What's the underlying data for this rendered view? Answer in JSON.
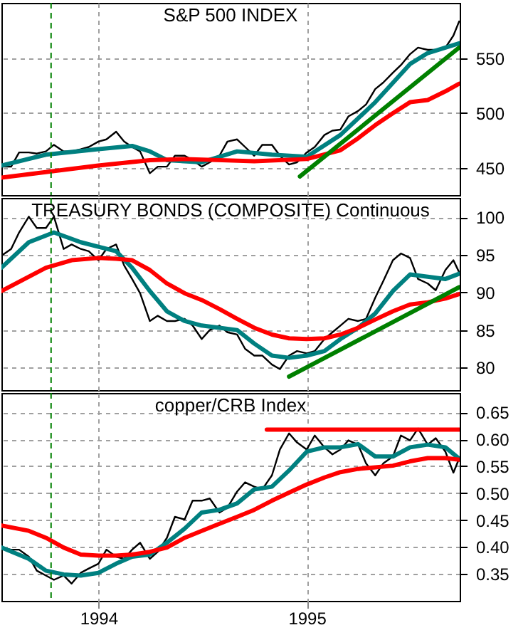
{
  "chart_data": [
    {
      "type": "line",
      "title": "S&P 500 INDEX",
      "xlim": [
        "1993-07-15",
        "1995-09-26"
      ],
      "xticks": [
        "1994",
        "1995"
      ],
      "ylim": [
        425,
        601
      ],
      "yticks": [
        450,
        500,
        550
      ],
      "grid": true,
      "tick_labels": "y",
      "x": [
        "1993-07-15",
        "1993-08-01",
        "1993-08-15",
        "1993-09-01",
        "1993-09-15",
        "1993-10-01",
        "1993-10-15",
        "1993-11-01",
        "1993-11-15",
        "1993-12-01",
        "1993-12-15",
        "1994-01-01",
        "1994-01-15",
        "1994-02-01",
        "1994-02-15",
        "1994-03-01",
        "1994-03-15",
        "1994-04-01",
        "1994-04-15",
        "1994-05-01",
        "1994-05-15",
        "1994-06-01",
        "1994-06-15",
        "1994-07-01",
        "1994-07-15",
        "1994-08-01",
        "1994-08-15",
        "1994-09-01",
        "1994-09-15",
        "1994-10-01",
        "1994-10-15",
        "1994-11-01",
        "1994-11-15",
        "1994-12-01",
        "1994-12-15",
        "1995-01-01",
        "1995-01-15",
        "1995-02-01",
        "1995-02-15",
        "1995-03-01",
        "1995-03-15",
        "1995-04-01",
        "1995-04-15",
        "1995-05-01",
        "1995-05-15",
        "1995-06-01",
        "1995-06-15",
        "1995-07-01",
        "1995-07-15",
        "1995-08-01",
        "1995-08-15",
        "1995-09-01",
        "1995-09-15",
        "1995-09-25"
      ],
      "series": [
        {
          "color": "#000000",
          "values": [
            451,
            451,
            464,
            464,
            463,
            465,
            471,
            465,
            465,
            467,
            469,
            474,
            476,
            483,
            474,
            469,
            465,
            445,
            451,
            451,
            461,
            461,
            457,
            451,
            455,
            461,
            474,
            476,
            469,
            461,
            471,
            471,
            461,
            453,
            455,
            464,
            469,
            480,
            484,
            485,
            497,
            502,
            508,
            522,
            528,
            537,
            544,
            554,
            560,
            558,
            558,
            560,
            571,
            584
          ]
        },
        {
          "color": "#008080",
          "x": [
            "1993-07-15",
            "1993-10-01",
            "1994-01-01",
            "1994-03-01",
            "1994-04-01",
            "1994-05-01",
            "1994-07-01",
            "1994-09-01",
            "1994-11-01",
            "1995-01-01",
            "1995-03-01",
            "1995-05-01",
            "1995-07-01",
            "1995-08-01",
            "1995-09-25"
          ],
          "values": [
            452,
            462,
            467,
            470,
            465,
            457,
            455,
            465,
            462,
            460,
            480,
            510,
            545,
            555,
            564
          ]
        },
        {
          "color": "#ff0000",
          "x": [
            "1993-07-15",
            "1994-01-01",
            "1994-04-01",
            "1994-06-01",
            "1994-10-01",
            "1995-01-01",
            "1995-03-01",
            "1995-04-01",
            "1995-05-01",
            "1995-06-01",
            "1995-07-01",
            "1995-08-01",
            "1995-09-01",
            "1995-09-25"
          ],
          "values": [
            441,
            452,
            457,
            458,
            456,
            458,
            466,
            477,
            489,
            500,
            510,
            512,
            520,
            527
          ]
        },
        {
          "color": "#008000",
          "x": [
            "1994-12-20",
            "1995-09-25"
          ],
          "values": [
            442,
            560
          ]
        }
      ],
      "ref_lines": [
        {
          "axis": "x",
          "value": "1993-10-10",
          "color": "#008000",
          "line_style": "dashed"
        }
      ]
    },
    {
      "type": "line",
      "title": "TREASURY BONDS (COMPOSITE) Continuous",
      "xlim": [
        "1993-07-15",
        "1995-09-26"
      ],
      "xticks": [
        "1994",
        "1995"
      ],
      "ylim": [
        77,
        102.6
      ],
      "yticks": [
        80,
        85,
        90,
        95,
        100
      ],
      "grid": true,
      "tick_labels": "y",
      "x": [
        "1993-07-15",
        "1993-08-01",
        "1993-08-15",
        "1993-09-01",
        "1993-09-15",
        "1993-10-01",
        "1993-10-15",
        "1993-11-01",
        "1993-11-15",
        "1993-12-01",
        "1993-12-15",
        "1994-01-01",
        "1994-01-15",
        "1994-02-01",
        "1994-02-15",
        "1994-03-01",
        "1994-03-15",
        "1994-04-01",
        "1994-04-15",
        "1994-05-01",
        "1994-05-15",
        "1994-06-01",
        "1994-06-15",
        "1994-07-01",
        "1994-07-15",
        "1994-08-01",
        "1994-08-15",
        "1994-09-01",
        "1994-09-15",
        "1994-10-01",
        "1994-10-15",
        "1994-11-01",
        "1994-11-15",
        "1994-12-01",
        "1994-12-15",
        "1995-01-01",
        "1995-01-15",
        "1995-02-01",
        "1995-02-15",
        "1995-03-01",
        "1995-03-15",
        "1995-04-01",
        "1995-04-15",
        "1995-05-01",
        "1995-05-15",
        "1995-06-01",
        "1995-06-15",
        "1995-07-01",
        "1995-07-15",
        "1995-08-01",
        "1995-08-15",
        "1995-09-01",
        "1995-09-15",
        "1995-09-25"
      ],
      "series": [
        {
          "color": "#000000",
          "values": [
            94.9,
            95.8,
            98.0,
            100.1,
            98.6,
            98.6,
            100.1,
            95.8,
            96.4,
            95.8,
            95.5,
            94.3,
            95.8,
            96.4,
            93.6,
            91.8,
            89.9,
            86.2,
            86.9,
            86.2,
            86.2,
            86.5,
            85.6,
            83.8,
            85.0,
            85.6,
            84.7,
            84.4,
            82.5,
            81.6,
            81.6,
            80.4,
            79.8,
            81.6,
            82.2,
            81.9,
            82.2,
            83.8,
            84.7,
            85.6,
            86.5,
            86.2,
            86.5,
            89.3,
            91.5,
            94.3,
            95.2,
            94.6,
            91.8,
            91.2,
            90.3,
            93.0,
            94.3,
            92.7
          ]
        },
        {
          "color": "#008080",
          "x": [
            "1993-07-15",
            "1993-09-01",
            "1993-10-15",
            "1993-12-01",
            "1994-01-01",
            "1994-02-01",
            "1994-03-01",
            "1994-04-01",
            "1994-05-01",
            "1994-06-01",
            "1994-07-01",
            "1994-08-01",
            "1994-09-01",
            "1994-10-01",
            "1994-11-01",
            "1994-12-01",
            "1995-01-01",
            "1995-02-01",
            "1995-03-01",
            "1995-04-01",
            "1995-05-01",
            "1995-06-01",
            "1995-07-01",
            "1995-08-01",
            "1995-09-01",
            "1995-09-25"
          ],
          "values": [
            93.3,
            96.7,
            98.0,
            96.7,
            96.1,
            95.5,
            93.3,
            90.2,
            87.5,
            86.2,
            85.6,
            85.3,
            85.0,
            83.2,
            81.6,
            81.3,
            81.6,
            82.2,
            83.8,
            85.3,
            87.2,
            90.2,
            92.4,
            92.1,
            91.8,
            92.5
          ]
        },
        {
          "color": "#ff0000",
          "x": [
            "1993-07-15",
            "1993-10-01",
            "1993-11-15",
            "1994-01-01",
            "1994-02-01",
            "1994-03-01",
            "1994-04-01",
            "1994-05-01",
            "1994-06-01",
            "1994-07-01",
            "1994-08-01",
            "1994-09-01",
            "1994-10-01",
            "1994-11-01",
            "1994-12-01",
            "1995-01-01",
            "1995-02-01",
            "1995-03-01",
            "1995-04-01",
            "1995-05-01",
            "1995-06-01",
            "1995-07-01",
            "1995-08-01",
            "1995-09-01",
            "1995-09-25"
          ],
          "values": [
            90.2,
            93.3,
            94.3,
            94.6,
            94.5,
            94.3,
            93.0,
            91.2,
            89.9,
            89.0,
            87.8,
            86.5,
            85.3,
            84.4,
            83.9,
            83.8,
            83.9,
            84.4,
            85.3,
            86.4,
            87.5,
            88.4,
            88.7,
            89.2,
            89.8
          ]
        },
        {
          "color": "#008000",
          "x": [
            "1994-12-01",
            "1995-09-25"
          ],
          "values": [
            78.8,
            90.7
          ]
        }
      ],
      "ref_lines": [
        {
          "axis": "x",
          "value": "1993-10-10",
          "color": "#008000",
          "line_style": "dashed"
        }
      ]
    },
    {
      "type": "line",
      "title": "copper/CRB Index",
      "xlim": [
        "1993-07-15",
        "1995-09-26"
      ],
      "xticks": [
        "1994",
        "1995"
      ],
      "ylim": [
        0.3,
        0.686
      ],
      "yticks": [
        {
          "value": 0.35,
          "label": "0.35"
        },
        {
          "value": 0.4,
          "label": "0.40"
        },
        {
          "value": 0.45,
          "label": "0.45"
        },
        {
          "value": 0.5,
          "label": "0.50"
        },
        {
          "value": 0.55,
          "label": "0.55"
        },
        {
          "value": 0.6,
          "label": "0.60"
        },
        {
          "value": 0.65,
          "label": "0.65"
        }
      ],
      "grid": true,
      "x": [
        "1993-07-15",
        "1993-08-01",
        "1993-08-15",
        "1993-09-01",
        "1993-09-15",
        "1993-10-01",
        "1993-10-15",
        "1993-11-01",
        "1993-11-15",
        "1993-12-01",
        "1993-12-15",
        "1994-01-01",
        "1994-01-15",
        "1994-02-01",
        "1994-02-15",
        "1994-03-01",
        "1994-03-15",
        "1994-04-01",
        "1994-04-15",
        "1994-05-01",
        "1994-05-15",
        "1994-06-01",
        "1994-06-15",
        "1994-07-01",
        "1994-07-15",
        "1994-08-01",
        "1994-08-15",
        "1994-09-01",
        "1994-09-15",
        "1994-10-01",
        "1994-10-15",
        "1994-11-01",
        "1994-11-15",
        "1994-12-01",
        "1994-12-15",
        "1995-01-01",
        "1995-01-15",
        "1995-02-01",
        "1995-02-15",
        "1995-03-01",
        "1995-03-15",
        "1995-04-01",
        "1995-04-15",
        "1995-05-01",
        "1995-05-15",
        "1995-06-01",
        "1995-06-15",
        "1995-07-01",
        "1995-07-15",
        "1995-08-01",
        "1995-08-15",
        "1995-09-01",
        "1995-09-15",
        "1995-09-25"
      ],
      "series": [
        {
          "color": "#000000",
          "values": [
            0.399,
            0.395,
            0.395,
            0.382,
            0.356,
            0.347,
            0.339,
            0.347,
            0.332,
            0.352,
            0.36,
            0.369,
            0.395,
            0.382,
            0.378,
            0.395,
            0.408,
            0.378,
            0.391,
            0.417,
            0.456,
            0.451,
            0.486,
            0.486,
            0.49,
            0.464,
            0.473,
            0.503,
            0.52,
            0.512,
            0.507,
            0.533,
            0.581,
            0.611,
            0.594,
            0.581,
            0.607,
            0.585,
            0.572,
            0.581,
            0.598,
            0.59,
            0.555,
            0.533,
            0.555,
            0.568,
            0.607,
            0.598,
            0.62,
            0.59,
            0.602,
            0.577,
            0.538,
            0.564
          ]
        },
        {
          "color": "#008080",
          "x": [
            "1993-07-15",
            "1993-09-01",
            "1993-10-01",
            "1993-11-01",
            "1993-12-01",
            "1994-01-01",
            "1994-02-01",
            "1994-03-01",
            "1994-04-01",
            "1994-05-01",
            "1994-06-01",
            "1994-07-01",
            "1994-08-01",
            "1994-09-01",
            "1994-10-01",
            "1994-11-01",
            "1994-12-01",
            "1995-01-01",
            "1995-02-01",
            "1995-03-01",
            "1995-04-01",
            "1995-05-01",
            "1995-06-01",
            "1995-07-01",
            "1995-08-01",
            "1995-09-01",
            "1995-09-25"
          ],
          "values": [
            0.399,
            0.378,
            0.356,
            0.349,
            0.347,
            0.352,
            0.369,
            0.382,
            0.386,
            0.408,
            0.434,
            0.464,
            0.469,
            0.481,
            0.507,
            0.512,
            0.542,
            0.577,
            0.585,
            0.585,
            0.591,
            0.568,
            0.568,
            0.585,
            0.59,
            0.585,
            0.564
          ]
        },
        {
          "color": "#ff0000",
          "x": [
            "1993-07-15",
            "1993-09-01",
            "1993-10-01",
            "1993-11-01",
            "1993-12-01",
            "1994-01-01",
            "1994-02-01",
            "1994-03-01",
            "1994-04-01",
            "1994-05-01",
            "1994-06-01",
            "1994-07-01",
            "1994-08-01",
            "1994-09-01",
            "1994-10-01",
            "1994-11-01",
            "1994-12-01",
            "1995-01-01",
            "1995-02-01",
            "1995-03-01",
            "1995-04-01",
            "1995-05-01",
            "1995-06-01",
            "1995-07-01",
            "1995-08-01",
            "1995-09-01",
            "1995-09-25"
          ],
          "values": [
            0.44,
            0.43,
            0.417,
            0.399,
            0.386,
            0.384,
            0.384,
            0.386,
            0.391,
            0.399,
            0.417,
            0.43,
            0.443,
            0.456,
            0.469,
            0.486,
            0.501,
            0.516,
            0.529,
            0.539,
            0.545,
            0.548,
            0.551,
            0.559,
            0.565,
            0.565,
            0.562
          ]
        },
        {
          "color": "#ff0000",
          "x": [
            "1994-10-23",
            "1995-09-25"
          ],
          "values": [
            0.618,
            0.618
          ]
        }
      ],
      "ref_lines": [
        {
          "axis": "x",
          "value": "1993-10-10",
          "color": "#008000",
          "line_style": "dashed"
        }
      ]
    }
  ]
}
